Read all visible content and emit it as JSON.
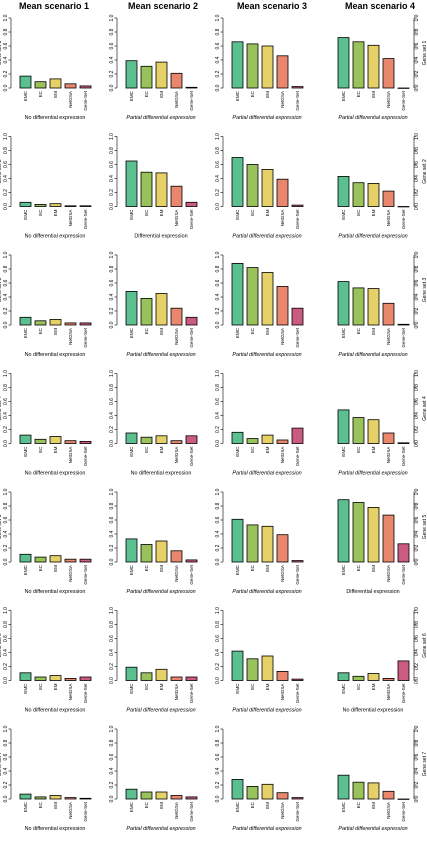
{
  "figure": {
    "column_titles": [
      "Mean scenario 1",
      "Mean scenario 2",
      "Mean scenario 3",
      "Mean scenario 4"
    ],
    "row_labels": [
      "Gene set 1",
      "Gene set 2",
      "Gene set 3",
      "Gene set 4",
      "Gene set 5",
      "Gene set 6",
      "Gene set 7"
    ],
    "y_ticks": [
      "0.0",
      "0.2",
      "0.4",
      "0.6",
      "0.8",
      "1.0"
    ],
    "categories": [
      "EMC",
      "EC",
      "EM",
      "NetGSA",
      "Gene-Set"
    ],
    "colors": {
      "EMC": "#5bbf8f",
      "EC": "#9ac25a",
      "EM": "#e6d168",
      "NetGSA": "#e8876e",
      "Gene-Set": "#cc5b82"
    }
  },
  "chart_data": {
    "type": "bar",
    "ylim": [
      0,
      1
    ],
    "categories": [
      "EMC",
      "EC",
      "EM",
      "NetGSA",
      "Gene-Set"
    ],
    "panels": [
      [
        {
          "caption": "No differential expression",
          "italic": false,
          "values": [
            0.17,
            0.09,
            0.13,
            0.06,
            0.03
          ]
        },
        {
          "caption": "Partial differential expression",
          "italic": true,
          "values": [
            0.39,
            0.31,
            0.37,
            0.21,
            0.01
          ]
        },
        {
          "caption": "Partial differential expression",
          "italic": true,
          "values": [
            0.66,
            0.63,
            0.6,
            0.46,
            0.02
          ]
        },
        {
          "caption": "Partial differential expression",
          "italic": true,
          "values": [
            0.72,
            0.66,
            0.61,
            0.42,
            0.0
          ]
        }
      ],
      [
        {
          "caption": "No differential expression",
          "italic": false,
          "values": [
            0.06,
            0.03,
            0.04,
            0.01,
            0.01
          ]
        },
        {
          "caption": "Differential expression",
          "italic": false,
          "values": [
            0.65,
            0.49,
            0.48,
            0.29,
            0.06
          ]
        },
        {
          "caption": "Partial differential expression",
          "italic": true,
          "values": [
            0.7,
            0.6,
            0.53,
            0.39,
            0.02
          ]
        },
        {
          "caption": "Partial differential expression",
          "italic": true,
          "values": [
            0.43,
            0.34,
            0.33,
            0.22,
            0.0
          ]
        }
      ],
      [
        {
          "caption": "No differential expression",
          "italic": false,
          "values": [
            0.11,
            0.06,
            0.08,
            0.03,
            0.03
          ]
        },
        {
          "caption": "Partial differential expression",
          "italic": true,
          "values": [
            0.48,
            0.38,
            0.45,
            0.24,
            0.11
          ]
        },
        {
          "caption": "Partial differential expression",
          "italic": true,
          "values": [
            0.88,
            0.82,
            0.75,
            0.55,
            0.24
          ]
        },
        {
          "caption": "Partial differential expression",
          "italic": true,
          "values": [
            0.62,
            0.53,
            0.52,
            0.31,
            0.01
          ]
        }
      ],
      [
        {
          "caption": "No differential expression",
          "italic": false,
          "values": [
            0.12,
            0.06,
            0.1,
            0.04,
            0.03
          ]
        },
        {
          "caption": "No differential expression",
          "italic": false,
          "values": [
            0.15,
            0.09,
            0.11,
            0.04,
            0.11
          ]
        },
        {
          "caption": "Partial differential expression",
          "italic": true,
          "values": [
            0.16,
            0.07,
            0.12,
            0.05,
            0.22
          ]
        },
        {
          "caption": "Partial differential expression",
          "italic": true,
          "values": [
            0.48,
            0.37,
            0.34,
            0.15,
            0.01
          ]
        }
      ],
      [
        {
          "caption": "No differential expression",
          "italic": false,
          "values": [
            0.11,
            0.07,
            0.09,
            0.04,
            0.04
          ]
        },
        {
          "caption": "Partial differential expression",
          "italic": true,
          "values": [
            0.33,
            0.25,
            0.3,
            0.16,
            0.03
          ]
        },
        {
          "caption": "Partial differential expression",
          "italic": true,
          "values": [
            0.61,
            0.53,
            0.51,
            0.39,
            0.02
          ]
        },
        {
          "caption": "Differential expression",
          "italic": false,
          "values": [
            0.89,
            0.85,
            0.78,
            0.67,
            0.26
          ]
        }
      ],
      [
        {
          "caption": "No differential expression",
          "italic": false,
          "values": [
            0.11,
            0.05,
            0.07,
            0.03,
            0.05
          ]
        },
        {
          "caption": "Partial differential expression",
          "italic": true,
          "values": [
            0.19,
            0.11,
            0.16,
            0.05,
            0.05
          ]
        },
        {
          "caption": "Partial differential expression",
          "italic": true,
          "values": [
            0.42,
            0.31,
            0.35,
            0.13,
            0.02
          ]
        },
        {
          "caption": "No differential expression",
          "italic": false,
          "values": [
            0.11,
            0.06,
            0.1,
            0.03,
            0.28
          ]
        }
      ],
      [
        {
          "caption": "No differential expression",
          "italic": false,
          "values": [
            0.07,
            0.03,
            0.05,
            0.02,
            0.01
          ]
        },
        {
          "caption": "Partial differential expression",
          "italic": true,
          "values": [
            0.14,
            0.1,
            0.1,
            0.05,
            0.03
          ]
        },
        {
          "caption": "Partial differential expression",
          "italic": true,
          "values": [
            0.28,
            0.18,
            0.21,
            0.09,
            0.02
          ]
        },
        {
          "caption": "Partial differential expression",
          "italic": true,
          "values": [
            0.34,
            0.24,
            0.23,
            0.11,
            0.0
          ]
        }
      ]
    ]
  }
}
